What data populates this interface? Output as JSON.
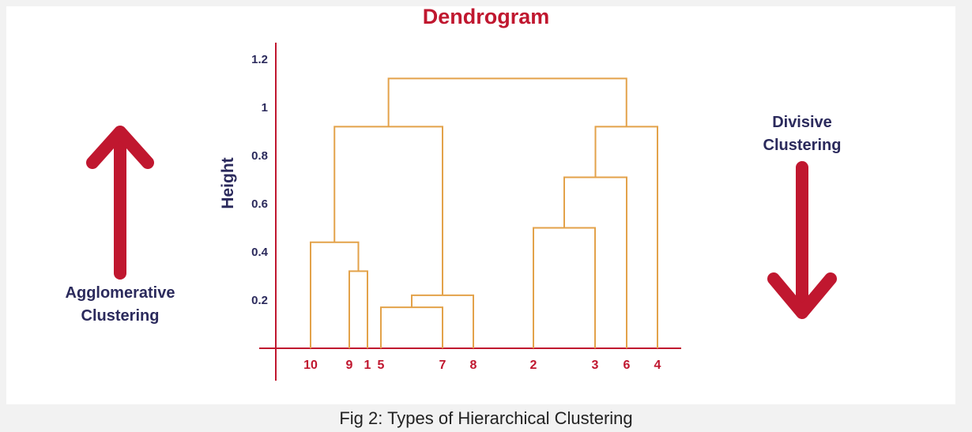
{
  "title": "Dendrogram",
  "y_axis_label": "Height",
  "left_label": {
    "line1": "Agglomerative",
    "line2": "Clustering",
    "arrow": "up-arrow-icon"
  },
  "right_label": {
    "line1": "Divisive",
    "line2": "Clustering",
    "arrow": "down-arrow-icon"
  },
  "caption": "Fig 2: Types of Hierarchical Clustering",
  "colors": {
    "accent": "#c0172f",
    "navy": "#2b2a5c",
    "branch": "#e3a24a"
  },
  "chart_data": {
    "type": "dendrogram",
    "ylabel": "Height",
    "ylim": [
      0,
      1.2
    ],
    "yticks": [
      "0.2",
      "0.4",
      "0.6",
      "0.8",
      "1",
      "1.2"
    ],
    "leaves": [
      "10",
      "9",
      "1",
      "5",
      "7",
      "8",
      "2",
      "3",
      "6",
      "4"
    ],
    "merges": [
      {
        "a": "9",
        "b": "1",
        "height": 0.32
      },
      {
        "a": "10",
        "b": "9+1",
        "height": 0.44
      },
      {
        "a": "5",
        "b": "7",
        "height": 0.17
      },
      {
        "a": "5+7",
        "b": "8",
        "height": 0.22
      },
      {
        "a": "10+9+1",
        "b": "5+7+8",
        "height": 0.92
      },
      {
        "a": "2",
        "b": "3",
        "height": 0.5
      },
      {
        "a": "2+3",
        "b": "6",
        "height": 0.71
      },
      {
        "a": "2+3+6",
        "b": "4",
        "height": 0.92
      },
      {
        "a": "left",
        "b": "right",
        "height": 1.12
      }
    ]
  }
}
